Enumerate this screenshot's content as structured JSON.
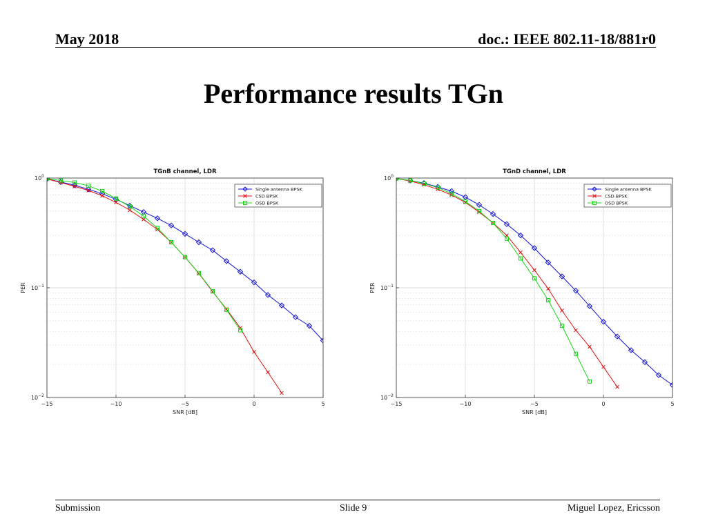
{
  "header": {
    "date": "May 2018",
    "doc": "doc.: IEEE 802.11-18/881r0"
  },
  "slide_title": "Performance results TGn",
  "footer": {
    "left": "Submission",
    "center": "Slide 9",
    "right": "Miguel Lopez, Ericsson"
  },
  "colors": {
    "single": "#1010d8",
    "csd": "#e01010",
    "osd": "#18d818"
  },
  "chart_data": [
    {
      "type": "line",
      "title": "TGnB channel, LDR",
      "xlabel": "SNR [dB]",
      "ylabel": "PER",
      "xlim": [
        -15,
        5
      ],
      "ylim": [
        0.01,
        1
      ],
      "yscale": "log",
      "grid": true,
      "legend_position": "top-right",
      "x_ticks": [
        "-15",
        "-10",
        "-5",
        "0",
        "5"
      ],
      "y_ticks": [
        {
          "base": "10",
          "exp": "0"
        },
        {
          "base": "10",
          "exp": "-1"
        },
        {
          "base": "10",
          "exp": "-2"
        }
      ],
      "series": [
        {
          "name": "Single antenna BPSK",
          "marker": "diamond",
          "x": [
            -15,
            -14,
            -13,
            -12,
            -11,
            -10,
            -9,
            -8,
            -7,
            -6,
            -5,
            -4,
            -3,
            -2,
            -1,
            0,
            1,
            2,
            3,
            4,
            5
          ],
          "y": [
            0.98,
            0.92,
            0.86,
            0.79,
            0.72,
            0.64,
            0.56,
            0.49,
            0.43,
            0.37,
            0.31,
            0.26,
            0.22,
            0.175,
            0.14,
            0.112,
            0.086,
            0.069,
            0.054,
            0.045,
            0.033
          ]
        },
        {
          "name": "CSD BPSK",
          "marker": "x",
          "x": [
            -15,
            -14,
            -13,
            -12,
            -11,
            -10,
            -9,
            -8,
            -7,
            -6,
            -5,
            -4,
            -3,
            -2,
            -1,
            0,
            1,
            2
          ],
          "y": [
            0.98,
            0.91,
            0.84,
            0.77,
            0.69,
            0.6,
            0.51,
            0.42,
            0.34,
            0.26,
            0.19,
            0.135,
            0.092,
            0.064,
            0.043,
            0.026,
            0.017,
            0.011
          ]
        },
        {
          "name": "OSD BPSK",
          "marker": "square",
          "x": [
            -15,
            -14,
            -13,
            -12,
            -11,
            -10,
            -9,
            -8,
            -7,
            -6,
            -5,
            -4,
            -3,
            -2,
            -1
          ],
          "y": [
            0.99,
            0.95,
            0.91,
            0.85,
            0.76,
            0.65,
            0.55,
            0.45,
            0.35,
            0.26,
            0.19,
            0.136,
            0.093,
            0.063,
            0.041
          ]
        }
      ]
    },
    {
      "type": "line",
      "title": "TGnD channel, LDR",
      "xlabel": "SNR [dB]",
      "ylabel": "PER",
      "xlim": [
        -15,
        5
      ],
      "ylim": [
        0.01,
        1
      ],
      "yscale": "log",
      "grid": true,
      "legend_position": "top-right",
      "x_ticks": [
        "-15",
        "-10",
        "-5",
        "0",
        "5"
      ],
      "y_ticks": [
        {
          "base": "10",
          "exp": "0"
        },
        {
          "base": "10",
          "exp": "-1"
        },
        {
          "base": "10",
          "exp": "-2"
        }
      ],
      "series": [
        {
          "name": "Single antenna BPSK",
          "marker": "diamond",
          "x": [
            -15,
            -14,
            -13,
            -12,
            -11,
            -10,
            -9,
            -8,
            -7,
            -6,
            -5,
            -4,
            -3,
            -2,
            -1,
            0,
            1,
            2,
            3,
            4,
            5
          ],
          "y": [
            0.99,
            0.95,
            0.9,
            0.83,
            0.76,
            0.67,
            0.57,
            0.47,
            0.38,
            0.3,
            0.23,
            0.17,
            0.127,
            0.094,
            0.068,
            0.049,
            0.036,
            0.027,
            0.021,
            0.016,
            0.013
          ]
        },
        {
          "name": "CSD BPSK",
          "marker": "x",
          "x": [
            -15,
            -14,
            -13,
            -12,
            -11,
            -10,
            -9,
            -8,
            -7,
            -6,
            -5,
            -4,
            -3,
            -2,
            -1,
            0,
            1
          ],
          "y": [
            0.99,
            0.94,
            0.87,
            0.79,
            0.7,
            0.6,
            0.49,
            0.39,
            0.3,
            0.21,
            0.145,
            0.098,
            0.062,
            0.041,
            0.029,
            0.019,
            0.0125
          ]
        },
        {
          "name": "OSD BPSK",
          "marker": "square",
          "x": [
            -15,
            -14,
            -13,
            -12,
            -11,
            -10,
            -9,
            -8,
            -7,
            -6,
            -5,
            -4,
            -3,
            -2,
            -1
          ],
          "y": [
            0.99,
            0.95,
            0.89,
            0.82,
            0.72,
            0.61,
            0.5,
            0.39,
            0.28,
            0.185,
            0.122,
            0.077,
            0.045,
            0.025,
            0.014
          ]
        }
      ]
    }
  ]
}
